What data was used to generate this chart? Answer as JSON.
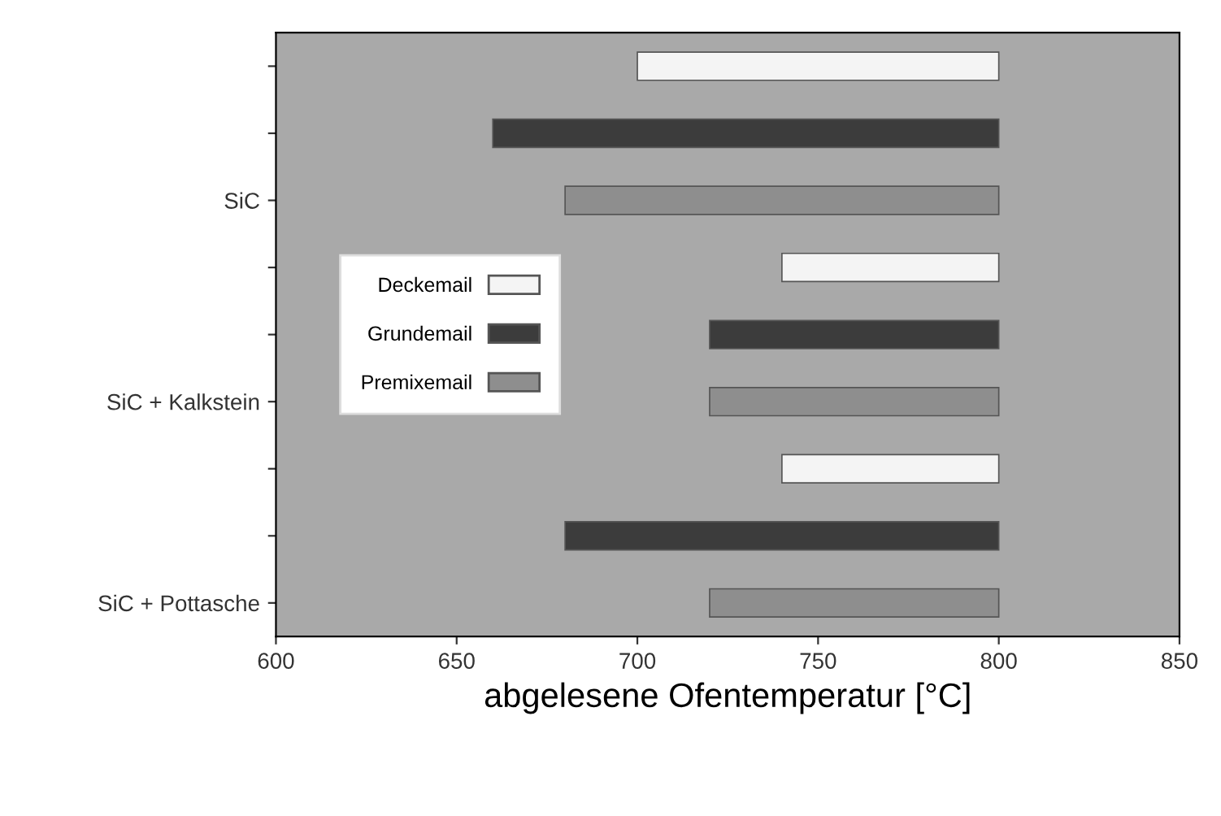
{
  "chart_data": {
    "type": "bar",
    "orientation": "horizontal",
    "categories": [
      null,
      null,
      "SiC",
      null,
      null,
      "SiC + Kalkstein",
      null,
      null,
      "SiC + Pottasche"
    ],
    "series": [
      {
        "name": "Deckemail",
        "color": "#f4f4f4",
        "base": [
          700,
          null,
          null,
          740,
          null,
          null,
          740,
          null,
          null
        ],
        "values": [
          100,
          null,
          null,
          60,
          null,
          null,
          60,
          null,
          null
        ]
      },
      {
        "name": "Grundemail",
        "color": "#3c3c3c",
        "base": [
          null,
          660,
          null,
          null,
          720,
          null,
          null,
          680,
          null
        ],
        "values": [
          null,
          140,
          null,
          null,
          80,
          null,
          null,
          120,
          null
        ]
      },
      {
        "name": "Premixemail",
        "color": "#8e8e8e",
        "base": [
          null,
          null,
          680,
          null,
          null,
          720,
          null,
          null,
          720
        ],
        "values": [
          null,
          null,
          120,
          null,
          null,
          80,
          null,
          null,
          80
        ]
      }
    ],
    "xlim": [
      600,
      850
    ],
    "xticks": [
      600,
      650,
      700,
      750,
      800,
      850
    ],
    "xlabel": "abgelesene Ofentemperatur [°C]",
    "legend": "center left",
    "grid": false
  }
}
